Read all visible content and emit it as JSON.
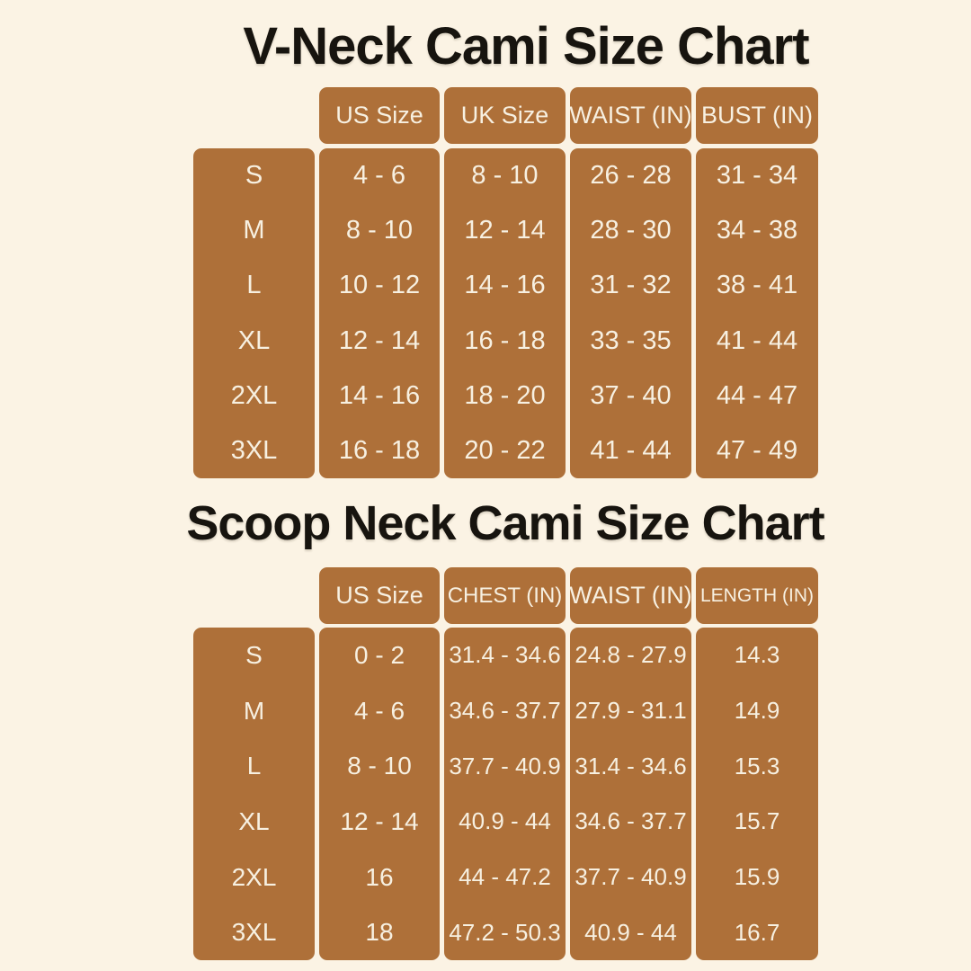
{
  "page": {
    "background_color": "#FBF3E4",
    "table_color": "#AE7039",
    "cell_text_color": "#F7F0E1",
    "title_color": "#17140F"
  },
  "chart_data": [
    {
      "type": "table",
      "title": "V-Neck Cami Size Chart",
      "headers": [
        "US Size",
        "UK Size",
        "WAIST (IN)",
        "BUST (IN)"
      ],
      "rows": [
        {
          "size": "S",
          "values": [
            "4 - 6",
            "8 - 10",
            "26 - 28",
            "31 - 34"
          ]
        },
        {
          "size": "M",
          "values": [
            "8 - 10",
            "12 - 14",
            "28 - 30",
            "34 - 38"
          ]
        },
        {
          "size": "L",
          "values": [
            "10 - 12",
            "14 - 16",
            "31 - 32",
            "38 - 41"
          ]
        },
        {
          "size": "XL",
          "values": [
            "12 - 14",
            "16 - 18",
            "33 - 35",
            "41 - 44"
          ]
        },
        {
          "size": "2XL",
          "values": [
            "14 - 16",
            "18 - 20",
            "37 - 40",
            "44 - 47"
          ]
        },
        {
          "size": "3XL",
          "values": [
            "16 - 18",
            "20 - 22",
            "41 - 44",
            "47 - 49"
          ]
        }
      ]
    },
    {
      "type": "table",
      "title": "Scoop Neck Cami Size Chart",
      "headers": [
        "US Size",
        "CHEST (IN)",
        "WAIST (IN)",
        "LENGTH (IN)"
      ],
      "rows": [
        {
          "size": "S",
          "values": [
            "0 - 2",
            "31.4 - 34.6",
            "24.8 - 27.9",
            "14.3"
          ]
        },
        {
          "size": "M",
          "values": [
            "4 - 6",
            "34.6 - 37.7",
            "27.9 - 31.1",
            "14.9"
          ]
        },
        {
          "size": "L",
          "values": [
            "8 - 10",
            "37.7 - 40.9",
            "31.4 - 34.6",
            "15.3"
          ]
        },
        {
          "size": "XL",
          "values": [
            "12 - 14",
            "40.9 - 44",
            "34.6 - 37.7",
            "15.7"
          ]
        },
        {
          "size": "2XL",
          "values": [
            "16",
            "44 - 47.2",
            "37.7 - 40.9",
            "15.9"
          ]
        },
        {
          "size": "3XL",
          "values": [
            "18",
            "47.2 - 50.3",
            "40.9 - 44",
            "16.7"
          ]
        }
      ]
    }
  ]
}
